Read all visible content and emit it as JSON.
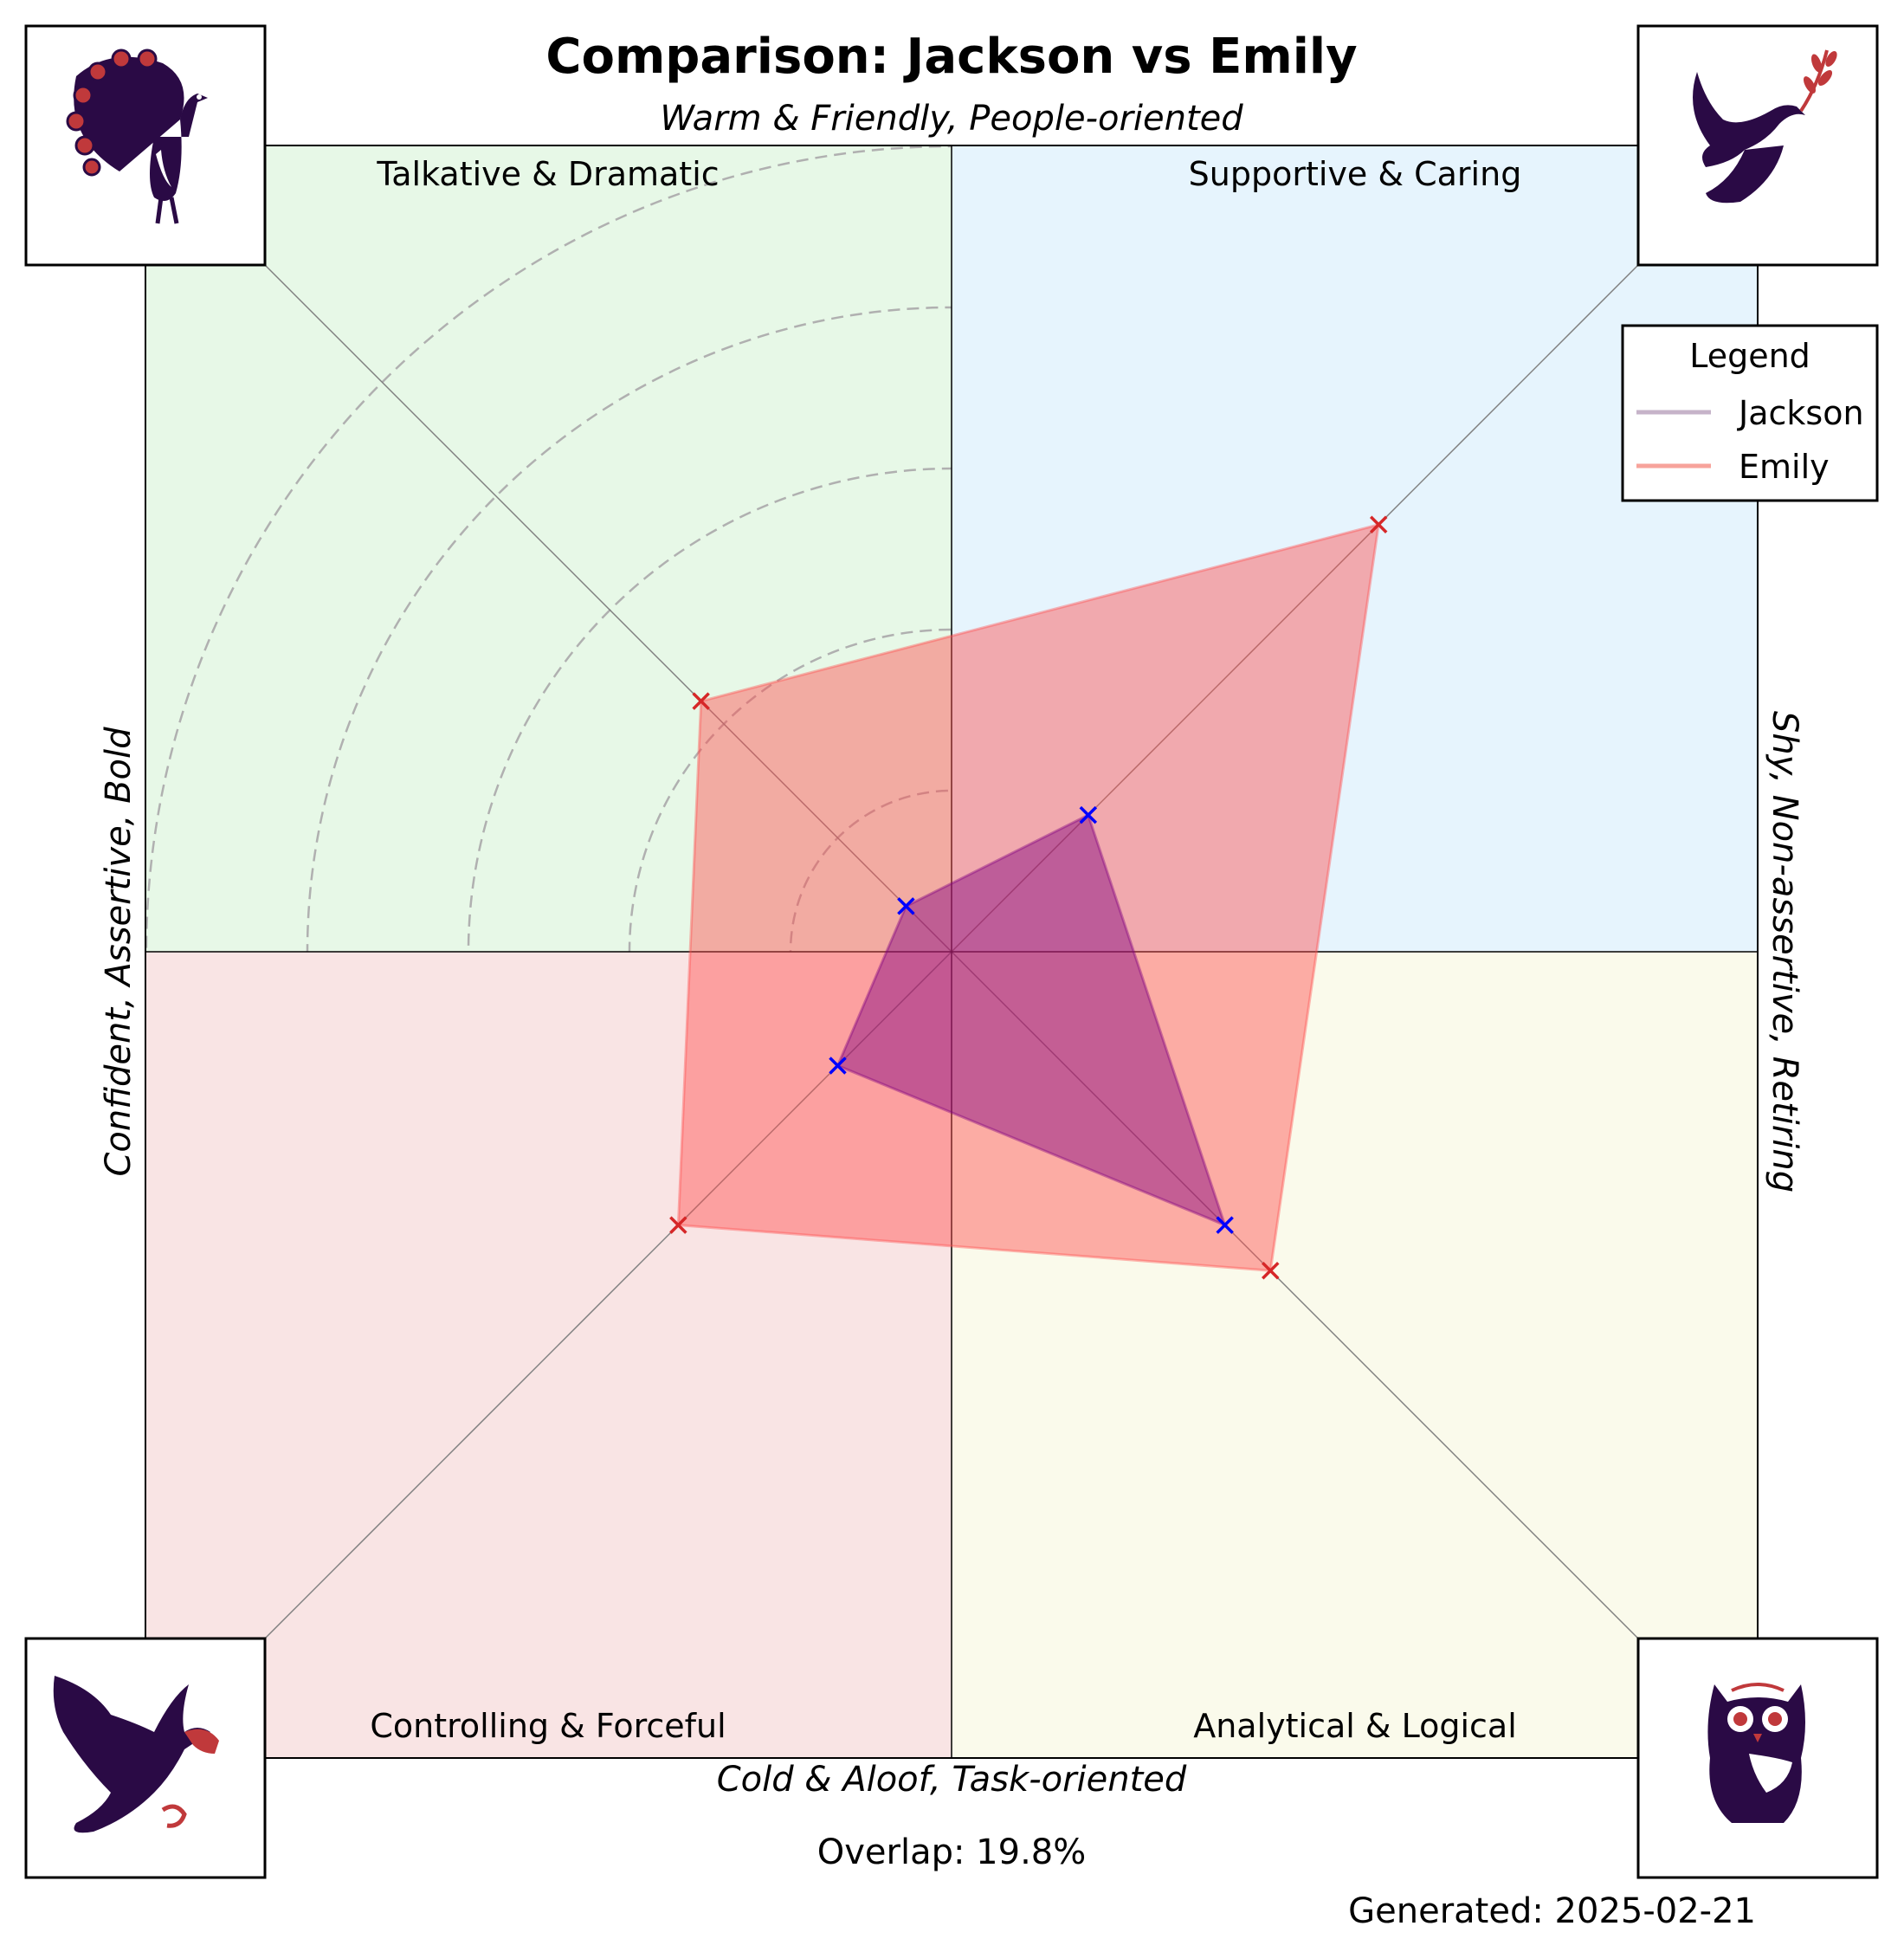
{
  "chart_data": {
    "type": "radar",
    "title": "Comparison: Jackson vs Emily",
    "axis_labels": {
      "top": "Warm & Friendly, People-oriented",
      "bottom": "Cold & Aloof, Task-oriented",
      "left": "Confident, Assertive, Bold",
      "right": "Shy, Non-assertive, Retiring"
    },
    "quadrants": [
      {
        "key": "top_left",
        "label": "Talkative & Dramatic",
        "color": "#e7f8e7",
        "icon": "peacock-icon"
      },
      {
        "key": "top_right",
        "label": "Supportive & Caring",
        "color": "#e6f4fd",
        "icon": "dove-icon"
      },
      {
        "key": "bottom_left",
        "label": "Controlling & Forceful",
        "color": "#f9e4e4",
        "icon": "eagle-icon"
      },
      {
        "key": "bottom_right",
        "label": "Analytical & Logical",
        "color": "#fafaeb",
        "icon": "owl-icon"
      }
    ],
    "categories": [
      "Supportive & Caring",
      "Analytical & Logical",
      "Controlling & Forceful",
      "Talkative & Dramatic"
    ],
    "rlim": [
      0,
      5
    ],
    "ring_step": 1,
    "series": [
      {
        "name": "Jackson",
        "values": [
          1.2,
          2.4,
          1.0,
          0.4
        ],
        "fill": "#800080",
        "fill_opacity": 0.45,
        "marker_color": "#0000ff",
        "legend_color": "#c6b3c9"
      },
      {
        "name": "Emily",
        "values": [
          3.75,
          2.8,
          2.4,
          2.2
        ],
        "fill": "#ff4d4d",
        "fill_opacity": 0.45,
        "marker_color": "#d62728",
        "legend_color": "#f7a39b"
      }
    ],
    "legend": {
      "title": "Legend",
      "position": "top-right"
    },
    "grid": true
  },
  "overlap": "Overlap: 19.8%",
  "generated": "Generated: 2025-02-21"
}
